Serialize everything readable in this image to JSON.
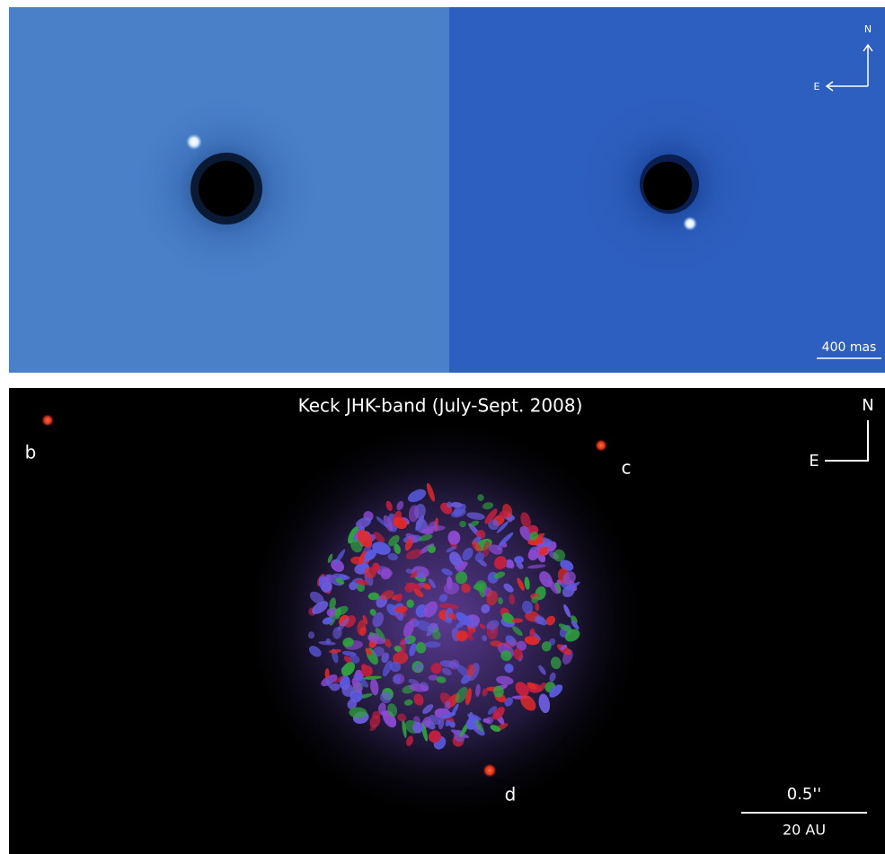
{
  "top_panel": {
    "compass": {
      "north": "N",
      "east": "E"
    },
    "scale_label": "400 mas"
  },
  "bottom_panel": {
    "title": "Keck JHK-band (July-Sept. 2008)",
    "planets": [
      "b",
      "c",
      "d"
    ],
    "compass": {
      "north": "N",
      "east": "E"
    },
    "scale_top": "0.5''",
    "scale_bottom": "20 AU"
  }
}
